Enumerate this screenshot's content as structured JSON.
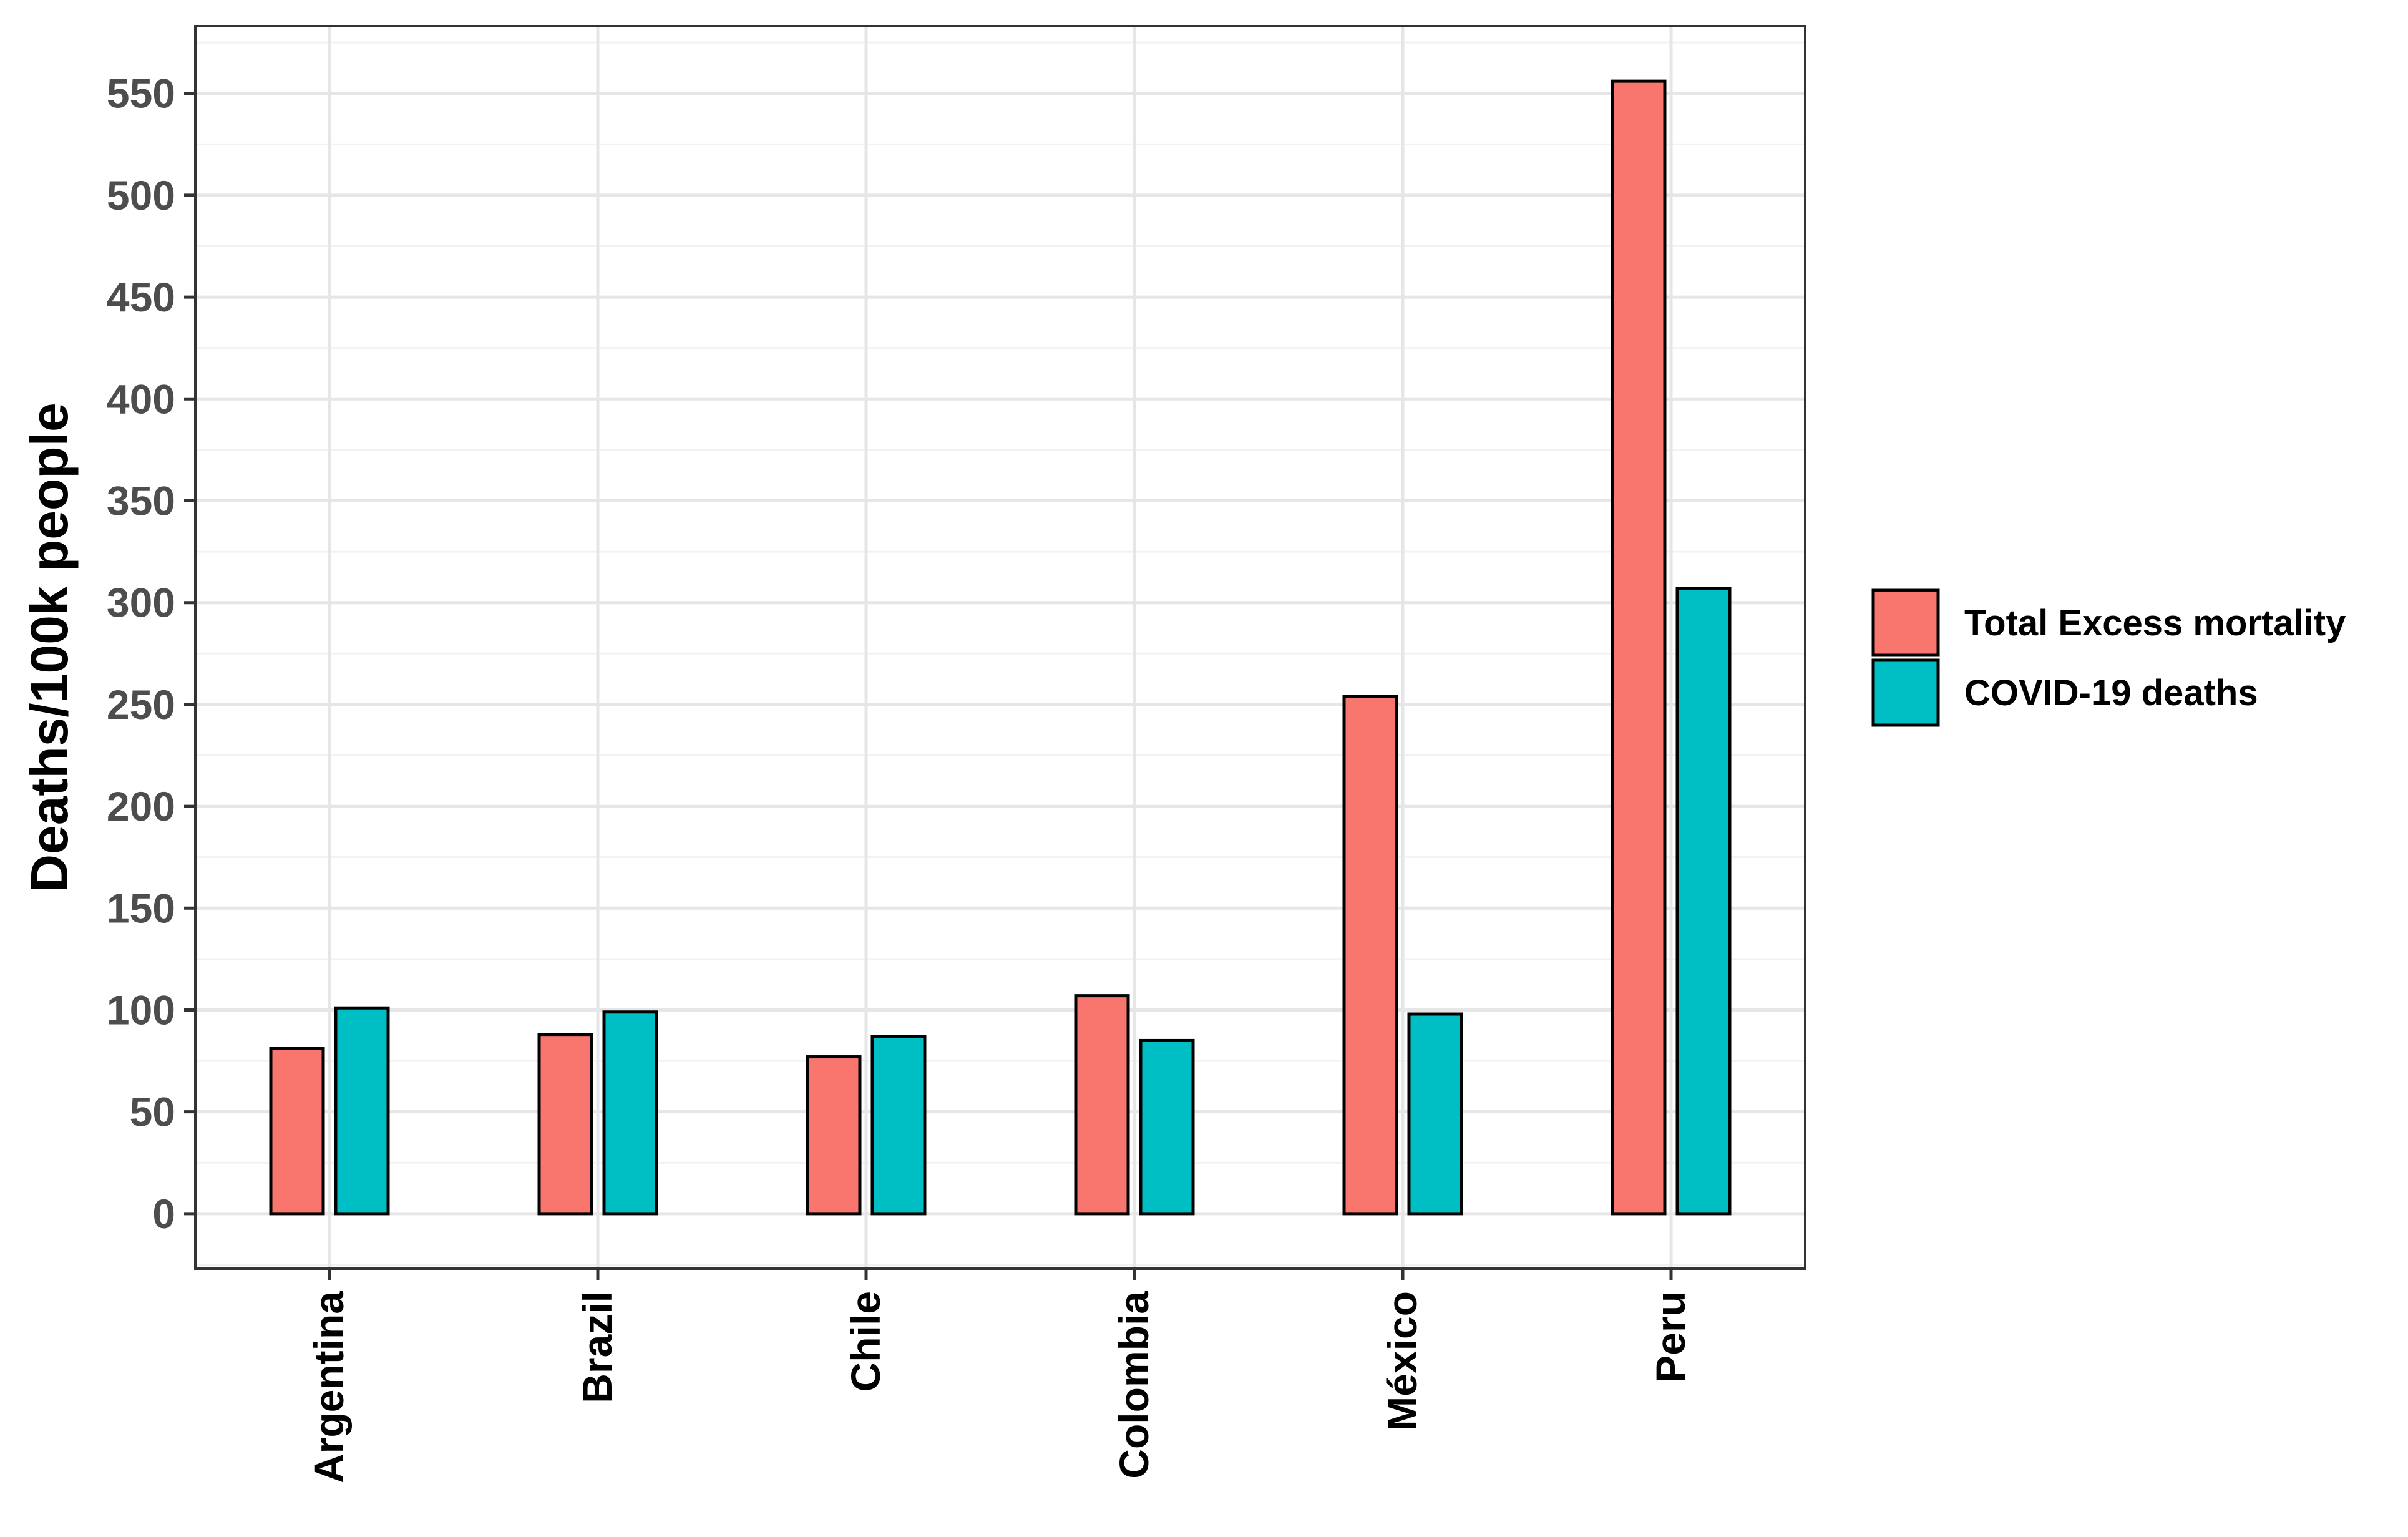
{
  "chart_data": {
    "type": "bar",
    "categories": [
      "Argentina",
      "Brazil",
      "Chile",
      "Colombia",
      "México",
      "Peru"
    ],
    "series": [
      {
        "name": "Total Excess mortality",
        "color": "#F8766D",
        "values": [
          81,
          88,
          77,
          107,
          254,
          556
        ]
      },
      {
        "name": "COVID-19 deaths",
        "color": "#00BFC4",
        "values": [
          101,
          99,
          87,
          85,
          98,
          307
        ]
      }
    ],
    "xlabel": "",
    "ylabel": "Deaths/100k people",
    "ylim": [
      -27,
      583
    ],
    "yticks": [
      0,
      50,
      100,
      150,
      200,
      250,
      300,
      350,
      400,
      450,
      500,
      550
    ],
    "grid": true,
    "legend_position": "right"
  }
}
